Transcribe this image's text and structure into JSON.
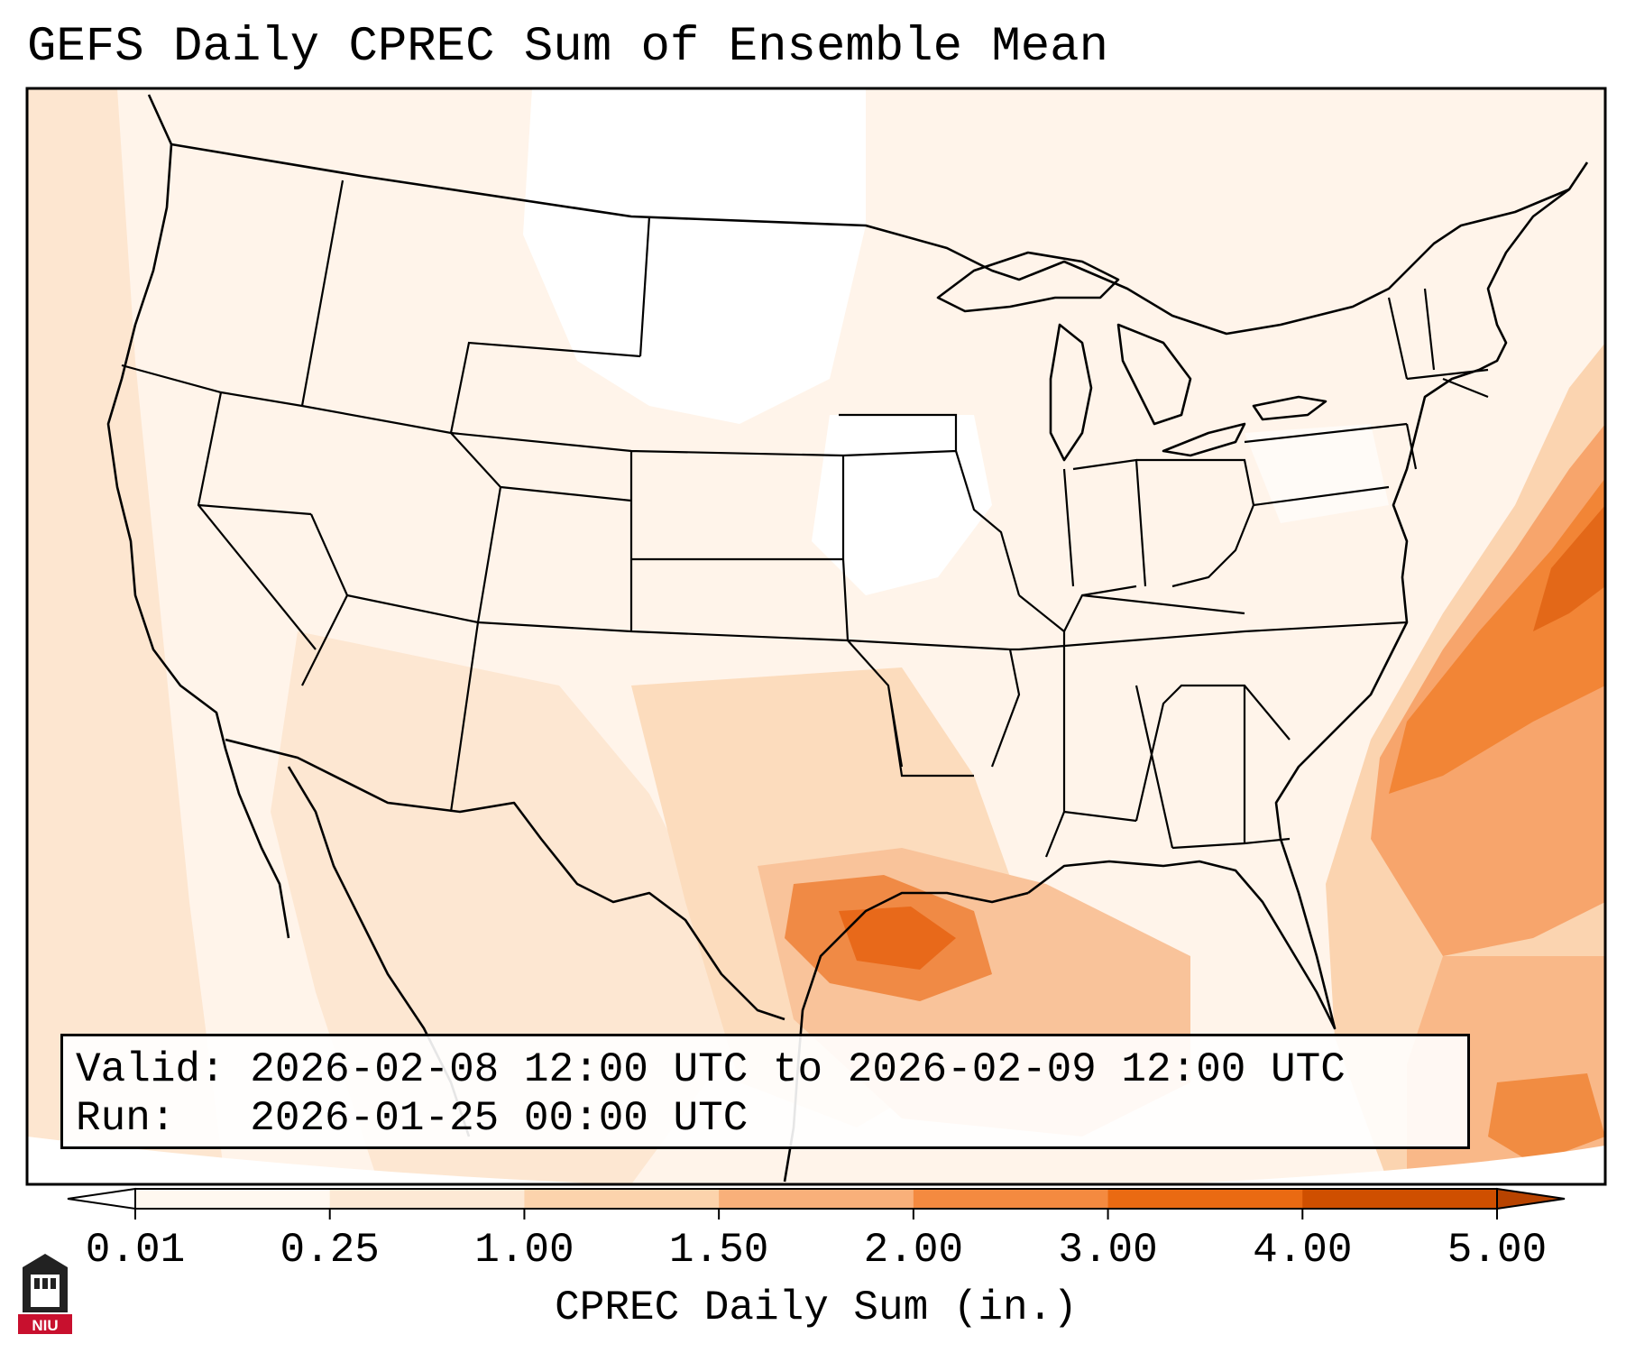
{
  "title": "GEFS Daily CPREC Sum of Ensemble Mean",
  "info": {
    "valid_line": "Valid: 2026-02-08 12:00 UTC to 2026-02-09 12:00 UTC",
    "run_line": "Run:   2026-01-25 00:00 UTC"
  },
  "colorbar": {
    "label": "CPREC Daily Sum (in.)",
    "ticks": [
      "0.01",
      "0.25",
      "1.00",
      "1.50",
      "2.00",
      "3.00",
      "4.00",
      "5.00"
    ],
    "colors": [
      "#fff8f0",
      "#fde9d5",
      "#fcd3ac",
      "#f9b07a",
      "#f48a40",
      "#ea6a12",
      "#cf4f00"
    ],
    "extend_low_color": "#ffffff",
    "extend_high_color": "#b84300"
  },
  "logo": {
    "text": "NIU",
    "color": "#c8102e"
  }
}
